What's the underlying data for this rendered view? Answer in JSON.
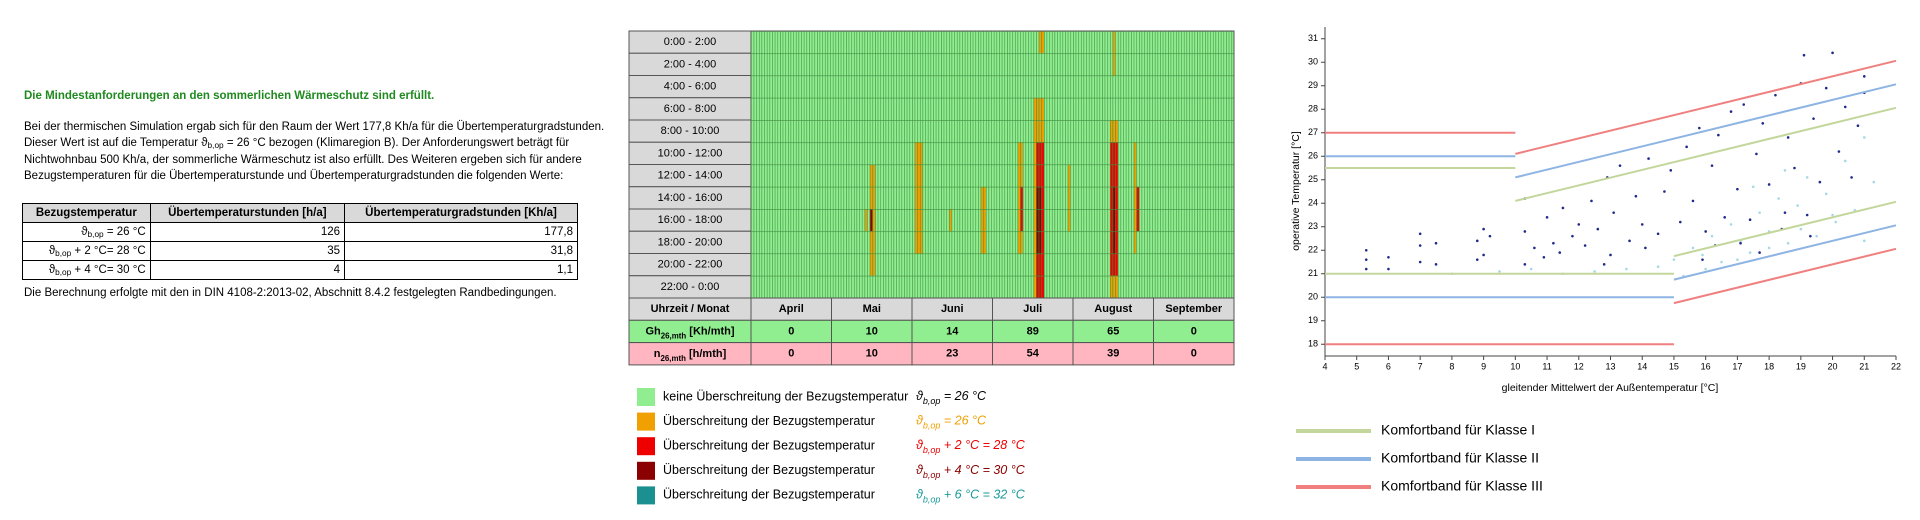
{
  "document": {
    "heading": "Die Mindestanforderungen an den sommerlichen Wärmeschutz sind erfüllt.",
    "paragraph": [
      "Bei der thermischen Simulation ergab sich für den Raum der Wert 177,8 Kh/a für die Übertemperaturgradstunden.",
      {
        "pre": " Dieser Wert ist auf die Temperatur ϑ",
        "sub": "b,op",
        "post": " = 26 °C bezogen (Klimaregion B). Der Anforderungswert beträgt für"
      },
      "Nichtwohnbau 500 Kh/a, der sommerliche Wärmeschutz ist also erfüllt. Des Weiteren ergeben sich für andere",
      "Bezugstemperaturen für die Übertemperaturstunde und Übertemperaturgradstunden die folgenden Werte:"
    ],
    "table": {
      "header": [
        "Bezugstemperatur",
        "Übertemperaturstunden [h/a]",
        "Übertemperaturgradstunden [Kh/a]"
      ],
      "rows": [
        [
          {
            "pre": "ϑ",
            "sub": "b,op",
            "post": " = 26 °C"
          },
          "126",
          "177,8"
        ],
        [
          {
            "pre": "ϑ",
            "sub": "b,op",
            "post": " + 2 °C= 28 °C"
          },
          "35",
          "31,8"
        ],
        [
          {
            "pre": "ϑ",
            "sub": "b,op",
            "post": " + 4 °C= 30 °C"
          },
          "4",
          "1,1"
        ]
      ]
    },
    "footer": "Die Berechnung erfolgte mit den in DIN 4108-2:2013-02, Abschnitt 8.4.2 festgelegten Randbedingungen."
  },
  "chart_data": [
    {
      "type": "heatmap",
      "rows": [
        "0:00 - 2:00",
        "2:00 - 4:00",
        "4:00 - 6:00",
        "6:00 - 8:00",
        "8:00 - 10:00",
        "10:00 - 12:00",
        "12:00 - 14:00",
        "14:00 - 16:00",
        "16:00 - 18:00",
        "18:00 - 20:00",
        "20:00 - 22:00",
        "22:00 - 0:00"
      ],
      "xlim": [
        0,
        183
      ],
      "levels": [
        {
          "color": "#90ee90",
          "label": "keine Überschreitung der Bezugstemperatur",
          "formula": {
            "pre": "ϑ",
            "sub": "b,op",
            "post": "  = 26 °C"
          },
          "formula_color": "#000000"
        },
        {
          "color": "#f0a000",
          "label": "Überschreitung der Bezugstemperatur",
          "formula": {
            "pre": "ϑ",
            "sub": "b,op",
            "post": "  = 26 °C"
          },
          "formula_color": "#f0a000"
        },
        {
          "color": "#ee0000",
          "label": "Überschreitung der Bezugstemperatur",
          "formula": {
            "pre": "ϑ",
            "sub": "b,op",
            "post": "  + 2 °C = 28 °C"
          },
          "formula_color": "#ee0000"
        },
        {
          "color": "#8b0000",
          "label": "Überschreitung der Bezugstemperatur",
          "formula": {
            "pre": "ϑ",
            "sub": "b,op",
            "post": "  + 4 °C = 30 °C"
          },
          "formula_color": "#8b0000"
        },
        {
          "color": "#1a9090",
          "label": "Überschreitung der Bezugstemperatur",
          "formula": {
            "pre": "ϑ",
            "sub": "b,op",
            "post": "  + 6 °C = 32 °C"
          },
          "formula_color": "#1a9a9a"
        }
      ],
      "events": [
        {
          "days": [
            45,
            46
          ],
          "slots": [
            6,
            10
          ],
          "level": 1
        },
        {
          "days": [
            43,
            43
          ],
          "slots": [
            8,
            8
          ],
          "level": 1
        },
        {
          "days": [
            45,
            45
          ],
          "slots": [
            8,
            8
          ],
          "level": 3
        },
        {
          "days": [
            62,
            64
          ],
          "slots": [
            5,
            9
          ],
          "level": 1
        },
        {
          "days": [
            75,
            75
          ],
          "slots": [
            8,
            8
          ],
          "level": 1
        },
        {
          "days": [
            87,
            88
          ],
          "slots": [
            7,
            9
          ],
          "level": 1
        },
        {
          "days": [
            101,
            102
          ],
          "slots": [
            5,
            9
          ],
          "level": 1
        },
        {
          "days": [
            102,
            102
          ],
          "slots": [
            7,
            8
          ],
          "level": 2
        },
        {
          "days": [
            109,
            110
          ],
          "slots": [
            0,
            0
          ],
          "level": 1
        },
        {
          "days": [
            107,
            110
          ],
          "slots": [
            3,
            11
          ],
          "level": 1
        },
        {
          "days": [
            108,
            110
          ],
          "slots": [
            5,
            11
          ],
          "level": 2
        },
        {
          "days": [
            108,
            109
          ],
          "slots": [
            7,
            9
          ],
          "level": 3
        },
        {
          "days": [
            120,
            120
          ],
          "slots": [
            6,
            8
          ],
          "level": 1
        },
        {
          "days": [
            137,
            137
          ],
          "slots": [
            0,
            1
          ],
          "level": 1
        },
        {
          "days": [
            136,
            138
          ],
          "slots": [
            4,
            11
          ],
          "level": 1
        },
        {
          "days": [
            136,
            138
          ],
          "slots": [
            5,
            10
          ],
          "level": 2
        },
        {
          "days": [
            137,
            137
          ],
          "slots": [
            7,
            9
          ],
          "level": 3
        },
        {
          "days": [
            145,
            145
          ],
          "slots": [
            5,
            9
          ],
          "level": 1
        },
        {
          "days": [
            146,
            146
          ],
          "slots": [
            7,
            8
          ],
          "level": 2
        }
      ],
      "table": {
        "header": "Uhrzeit / Monat",
        "months": [
          "April",
          "Mai",
          "Juni",
          "Juli",
          "August",
          "September"
        ],
        "rows": [
          {
            "label": {
              "pre": "Gh",
              "sub": "26,mth",
              "post": " [Kh/mth]"
            },
            "color": "#90ee90",
            "values": [
              0,
              10,
              14,
              89,
              65,
              0
            ]
          },
          {
            "label": {
              "pre": "n",
              "sub": "26,mth",
              "post": " [h/mth]"
            },
            "color": "#ffb6c1",
            "values": [
              0,
              10,
              23,
              54,
              39,
              0
            ]
          }
        ]
      }
    },
    {
      "type": "scatter",
      "xlabel": "gleitender Mittelwert der Außentemperatur [°C]",
      "ylabel": "operative Temperatur [°C]",
      "xlim": [
        4,
        22
      ],
      "ylim": [
        17.5,
        31.5
      ],
      "xticks": [
        4,
        5,
        6,
        7,
        8,
        9,
        10,
        11,
        12,
        13,
        14,
        15,
        16,
        17,
        18,
        19,
        20,
        21,
        22
      ],
      "yticks": [
        18,
        19,
        20,
        21,
        22,
        23,
        24,
        25,
        26,
        27,
        28,
        29,
        30,
        31
      ],
      "points": [
        {
          "color": "#a6d8e6",
          "x": [
            8,
            9.5,
            10.5,
            11.5,
            12.5,
            13.5,
            14.5,
            15,
            15.3,
            15.6,
            15.9,
            16.2,
            16.5,
            16.8,
            17.1,
            17.4,
            17.7,
            18,
            18.3,
            18.6,
            18.9,
            19.2,
            19.5,
            19.8,
            20.1,
            20.4,
            20.7,
            21,
            21.3,
            16,
            17,
            18,
            19,
            20,
            21,
            17.5,
            18.5
          ],
          "values": [
            21,
            21.1,
            21.2,
            21,
            21.1,
            21.2,
            21.3,
            21.6,
            20.9,
            22.1,
            21.8,
            22.6,
            21.5,
            23.1,
            22.4,
            21.9,
            23.6,
            22.8,
            24.2,
            22.3,
            23.9,
            25.1,
            22.6,
            24.4,
            23.2,
            25.8,
            23.7,
            26.8,
            24.9,
            21.2,
            21.6,
            22.1,
            22.9,
            23.5,
            22.4,
            24.7,
            25.4
          ]
        },
        {
          "color": "#1f2a8a",
          "x": [
            5.3,
            5.3,
            5.3,
            6,
            6,
            7,
            7,
            7,
            7.5,
            7.5,
            8.8,
            8.8,
            9,
            9,
            9.2,
            10.3,
            10.3,
            10.3,
            10.6,
            10.9,
            11,
            11.2,
            11.4,
            11.5,
            11.8,
            12,
            12.2,
            12.4,
            12.6,
            12.9,
            13,
            13.1,
            13.3,
            13.6,
            13.8,
            14,
            14.2,
            14.5,
            14.7,
            14.9,
            15.2,
            15.4,
            15.6,
            15.8,
            16,
            16.2,
            16.4,
            16.6,
            16.8,
            17,
            17.2,
            17.4,
            17.6,
            17.8,
            18,
            18.2,
            18.4,
            18.6,
            18.8,
            19,
            19.1,
            19.2,
            19.4,
            19.6,
            19.8,
            20,
            20.2,
            20.4,
            20.6,
            20.8,
            21,
            21,
            16.3,
            17.7,
            18.5,
            19.3,
            12.8,
            14.1,
            15.9,
            17.1
          ],
          "values": [
            21.2,
            21.6,
            22,
            21.2,
            21.7,
            21.5,
            22.2,
            22.7,
            21.4,
            22.3,
            21.6,
            22.4,
            22.9,
            21.8,
            22.6,
            21.4,
            22.8,
            24.2,
            22.1,
            21.7,
            23.4,
            22.3,
            21.9,
            23.8,
            22.6,
            23.1,
            22.2,
            24.1,
            22.9,
            25.1,
            21.8,
            23.6,
            25.6,
            22.4,
            24.3,
            23.1,
            25.9,
            22.7,
            24.5,
            25.4,
            23.2,
            26.4,
            24.1,
            27.2,
            22.8,
            25.6,
            26.9,
            23.4,
            27.9,
            24.6,
            28.2,
            23.3,
            26.1,
            27.4,
            24.8,
            28.6,
            22.9,
            26.8,
            25.5,
            29.1,
            30.3,
            23.5,
            27.6,
            24.9,
            28.9,
            30.4,
            26.2,
            28.1,
            25.1,
            27.3,
            29.4,
            28.7,
            22.2,
            21.9,
            23.6,
            22.6,
            21.4,
            22.1,
            21.6,
            22.3
          ]
        }
      ],
      "series": [
        {
          "name": "Komfortband für Klasse I",
          "color": "#c3d69b",
          "lines": [
            {
              "x": [
                4,
                10
              ],
              "values": [
                25.5,
                25.5
              ]
            },
            {
              "x": [
                10,
                22
              ],
              "values": [
                24.1,
                28.06
              ]
            },
            {
              "x": [
                4,
                15
              ],
              "values": [
                21,
                21
              ]
            },
            {
              "x": [
                15,
                22
              ],
              "values": [
                21.75,
                24.06
              ]
            }
          ]
        },
        {
          "name": "Komfortband für Klasse II",
          "color": "#8eb4e3",
          "lines": [
            {
              "x": [
                4,
                10
              ],
              "values": [
                26,
                26
              ]
            },
            {
              "x": [
                10,
                22
              ],
              "values": [
                25.1,
                29.06
              ]
            },
            {
              "x": [
                4,
                15
              ],
              "values": [
                20,
                20
              ]
            },
            {
              "x": [
                15,
                22
              ],
              "values": [
                20.75,
                23.06
              ]
            }
          ]
        },
        {
          "name": "Komfortband für Klasse III",
          "color": "#f08080",
          "lines": [
            {
              "x": [
                4,
                10
              ],
              "values": [
                27,
                27
              ]
            },
            {
              "x": [
                10,
                22
              ],
              "values": [
                26.1,
                30.06
              ]
            },
            {
              "x": [
                4,
                15
              ],
              "values": [
                18,
                18
              ]
            },
            {
              "x": [
                15,
                22
              ],
              "values": [
                19.75,
                22.06
              ]
            }
          ]
        }
      ]
    }
  ]
}
